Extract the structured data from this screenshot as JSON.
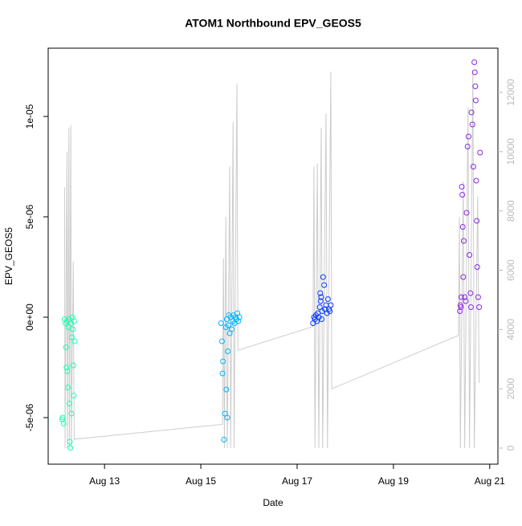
{
  "chart_data": {
    "type": "scatter",
    "title": "ATOM1 Northbound EPV_GEOS5",
    "x_label": "Date",
    "y_label": "EPV_GEOS5",
    "xlim": [
      11.83,
      21.17
    ],
    "xticks": [
      {
        "value": 13,
        "label": "Aug 13"
      },
      {
        "value": 15,
        "label": "Aug 15"
      },
      {
        "value": 17,
        "label": "Aug 17"
      },
      {
        "value": 19,
        "label": "Aug 19"
      },
      {
        "value": 21,
        "label": "Aug 21"
      }
    ],
    "ylim": [
      -7.32e-06,
      1.34e-05
    ],
    "yticks": [
      {
        "value": -5e-06,
        "label": "-5e-06"
      },
      {
        "value": 0,
        "label": "0e+00"
      },
      {
        "value": 5e-06,
        "label": "5e-06"
      },
      {
        "value": 1e-05,
        "label": "1e-05"
      }
    ],
    "y2lim": [
      -542,
      13490
    ],
    "y2ticks": [
      0,
      2000,
      4000,
      6000,
      8000,
      10000,
      12000
    ],
    "y2_color": "#bbbbbb",
    "series": [
      {
        "type": "line",
        "axis": "y2",
        "color": "#cccccc",
        "x": [
          12.17,
          12.18,
          12.22,
          12.23,
          12.26,
          12.27,
          12.3,
          12.31,
          12.35,
          12.37,
          15.45,
          15.47,
          15.49,
          15.52,
          15.55,
          15.6,
          15.62,
          15.67,
          15.69,
          15.75,
          15.77,
          17.33,
          17.35,
          17.37,
          17.42,
          17.45,
          17.5,
          17.53,
          17.6,
          17.63,
          17.7,
          17.72,
          20.35,
          20.37,
          20.39,
          20.45,
          20.48,
          20.55,
          20.58,
          20.65,
          20.68,
          20.75,
          20.78
        ],
        "values": [
          8800,
          0,
          10000,
          0,
          10800,
          0,
          10900,
          0,
          6300,
          300,
          800,
          6400,
          0,
          7800,
          0,
          9500,
          0,
          11000,
          0,
          12300,
          3300,
          4100,
          9500,
          0,
          9600,
          0,
          10800,
          0,
          11300,
          0,
          12700,
          2000,
          3800,
          7800,
          0,
          9000,
          0,
          11500,
          0,
          12700,
          0,
          8500,
          2200
        ]
      },
      {
        "type": "points",
        "color": "#1effb4",
        "x": [
          12.13,
          12.15,
          12.17,
          12.19,
          12.2,
          12.21,
          12.22,
          12.23,
          12.24,
          12.25,
          12.26,
          12.27,
          12.28,
          12.29,
          12.3,
          12.31,
          12.32,
          12.33,
          12.34,
          12.35,
          12.36,
          12.37,
          12.12,
          12.38
        ],
        "values": [
          -5e-06,
          -5.3e-06,
          -1e-07,
          -3e-07,
          -1.5e-06,
          -2.5e-06,
          -2e-07,
          -2.7e-06,
          -3.5e-06,
          -5e-07,
          -1e-07,
          -4.3e-06,
          -6.2e-06,
          -6.5e-06,
          -3e-07,
          -4.8e-06,
          -1e-06,
          0,
          -6e-07,
          -2.4e-06,
          -3.9e-06,
          -2e-07,
          -5.1e-06,
          -1.2e-06
        ]
      },
      {
        "type": "points",
        "color": "#00b4ff",
        "x": [
          15.42,
          15.44,
          15.46,
          15.48,
          15.5,
          15.52,
          15.53,
          15.54,
          15.55,
          15.56,
          15.57,
          15.58,
          15.6,
          15.62,
          15.64,
          15.66,
          15.68,
          15.7,
          15.72,
          15.74,
          15.76,
          15.78,
          15.8,
          15.45
        ],
        "values": [
          -3e-07,
          -1.2e-06,
          -2.2e-06,
          -6.1e-06,
          -4.8e-06,
          -5e-07,
          -3.6e-06,
          -1e-07,
          -5e-06,
          -1.7e-06,
          -4e-07,
          1e-07,
          -8e-07,
          0,
          -6e-07,
          -2e-07,
          1e-07,
          -3e-07,
          0,
          -1e-07,
          2e-07,
          -2e-07,
          0,
          -2.8e-06
        ]
      },
      {
        "type": "points",
        "color": "#0a3cff",
        "x": [
          17.33,
          17.35,
          17.37,
          17.39,
          17.41,
          17.43,
          17.45,
          17.47,
          17.49,
          17.5,
          17.52,
          17.54,
          17.56,
          17.58,
          17.6,
          17.62,
          17.64,
          17.66,
          17.68,
          17.7,
          17.48,
          17.51
        ],
        "values": [
          -3e-07,
          0,
          -1e-07,
          1e-07,
          -2e-07,
          2e-07,
          0,
          5e-07,
          8e-07,
          1e-06,
          3e-07,
          2e-06,
          1.6e-06,
          4e-07,
          6e-07,
          2e-07,
          9e-07,
          4e-07,
          3e-07,
          6e-07,
          1.2e-06,
          -1e-07
        ]
      },
      {
        "type": "points",
        "color": "#8a2be2",
        "x": [
          20.38,
          20.39,
          20.4,
          20.41,
          20.42,
          20.43,
          20.44,
          20.45,
          20.46,
          20.48,
          20.5,
          20.52,
          20.54,
          20.56,
          20.58,
          20.6,
          20.61,
          20.62,
          20.64,
          20.66,
          20.68,
          20.69,
          20.7,
          20.71,
          20.72,
          20.73,
          20.74,
          20.76,
          20.78,
          20.8
        ],
        "values": [
          3e-07,
          6e-07,
          5e-07,
          1e-06,
          6.5e-06,
          6.1e-06,
          4.5e-06,
          2e-06,
          3.8e-06,
          1e-06,
          8e-07,
          5.2e-06,
          8.5e-06,
          9e-06,
          3.1e-06,
          1.2e-06,
          5e-07,
          1.02e-05,
          9.6e-06,
          7.5e-06,
          1.27e-05,
          1.22e-05,
          1.15e-05,
          1.08e-05,
          6.8e-06,
          4.8e-06,
          2.5e-06,
          1e-06,
          5e-07,
          8.2e-06
        ]
      }
    ]
  }
}
